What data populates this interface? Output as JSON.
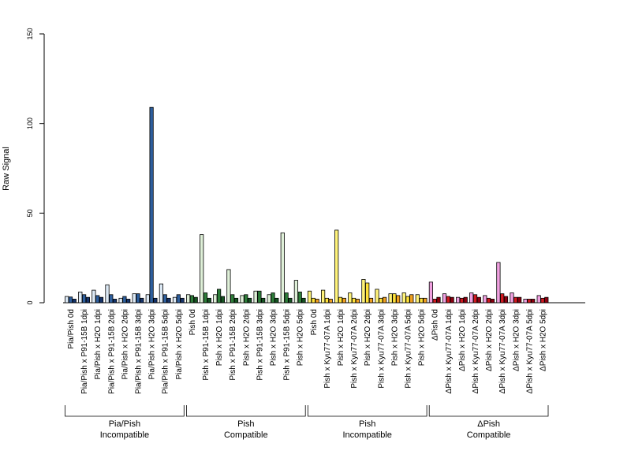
{
  "chart_data": {
    "type": "bar",
    "ylabel": "Raw Signal",
    "ylim": [
      0,
      150
    ],
    "yticks": [
      0,
      50,
      100,
      150
    ],
    "grid": false,
    "categories": [
      "Pia/Pish 0d",
      "Pia/Pish x P91-15B 1dpi",
      "Pia/Pish x H2O 1dpi",
      "Pia/Pish x P91-15B 2dpi",
      "Pia/Pish x H2O 2dpi",
      "Pia/Pish x P91-15B 3dpi",
      "Pia/Pish x H2O 3dpi",
      "Pia/Pish x P91-15B 5dpi",
      "Pia/Pish x H2O 5dpi",
      "Pish 0d",
      "Pish x P91-15B 1dpi",
      "Pish x H2O 1dpi",
      "Pish x P91-15B 2dpi",
      "Pish x H2O 2dpi",
      "Pish x P91-15B 3dpi",
      "Pish x H2O 3dpi",
      "Pish x P91-15B 5dpi",
      "Pish x H2O 5dpi",
      "Pish 0d",
      "Pish x Kyu77-07A 1dpi",
      "Pish x H2O 1dpi",
      "Pish x Kyu77-07A 2dpi",
      "Pish x H2O 2dpi",
      "Pish x Kyu77-07A 3dpi",
      "Pish x H2O 3dpi",
      "Pish x Kyu77-07A 5dpi",
      "Pish x H2O 5dpi",
      "ΔPish 0d",
      "ΔPish x Kyu77-07A 1dpi",
      "ΔPish x H2O 1dpi",
      "ΔPish x Kyu77-07A 2dpi",
      "ΔPish x H2O 2dpi",
      "ΔPish x Kyu77-07A 3dpi",
      "ΔPish x H2O 3dpi",
      "ΔPish x Kyu77-07A 5dpi",
      "ΔPish x H2O 5dpi"
    ],
    "values": [
      [
        3.5,
        3.2,
        2.0
      ],
      [
        6.0,
        4.5,
        3.0
      ],
      [
        7.0,
        4.0,
        3.0
      ],
      [
        10.0,
        4.5,
        2.0
      ],
      [
        2.5,
        3.5,
        2.0
      ],
      [
        5.0,
        5.0,
        2.5
      ],
      [
        4.5,
        109.0,
        2.5
      ],
      [
        10.5,
        4.5,
        2.5
      ],
      [
        3.0,
        4.5,
        2.5
      ],
      [
        4.5,
        4.0,
        3.0
      ],
      [
        38.0,
        5.5,
        2.5
      ],
      [
        4.5,
        7.5,
        3.5
      ],
      [
        18.5,
        4.5,
        2.5
      ],
      [
        4.0,
        4.5,
        2.5
      ],
      [
        6.5,
        6.5,
        2.5
      ],
      [
        4.5,
        5.5,
        2.5
      ],
      [
        39.0,
        5.5,
        2.5
      ],
      [
        12.5,
        6.0,
        2.5
      ],
      [
        6.5,
        2.5,
        2.0
      ],
      [
        7.0,
        2.5,
        2.0
      ],
      [
        40.5,
        3.0,
        2.5
      ],
      [
        5.5,
        2.5,
        2.0
      ],
      [
        13.0,
        11.0,
        2.5
      ],
      [
        7.5,
        2.5,
        3.0
      ],
      [
        5.0,
        5.0,
        4.0
      ],
      [
        5.5,
        3.5,
        4.5
      ],
      [
        4.5,
        2.5,
        2.5
      ],
      [
        11.5,
        2.0,
        3.0
      ],
      [
        5.0,
        3.5,
        3.0
      ],
      [
        3.0,
        2.5,
        3.0
      ],
      [
        5.5,
        4.5,
        3.0
      ],
      [
        4.0,
        2.5,
        2.0
      ],
      [
        22.5,
        5.0,
        3.5
      ],
      [
        5.5,
        3.0,
        3.0
      ],
      [
        2.0,
        2.0,
        2.0
      ],
      [
        4.0,
        2.5,
        3.0
      ]
    ],
    "group_colors": [
      [
        "#dce9f5",
        "#2e5f9e",
        "#16346b"
      ],
      [
        "#dff0d8",
        "#2e7d3a",
        "#165422"
      ],
      [
        "#fff37a",
        "#ffe13a",
        "#f0a020"
      ],
      [
        "#f0a0e0",
        "#d01a20",
        "#8c0010"
      ]
    ],
    "groups": [
      {
        "line1": "Pia/Pish",
        "line2": "Incompatible",
        "start": 0,
        "end": 8
      },
      {
        "line1": "Pish",
        "line2": "Compatible",
        "start": 9,
        "end": 17
      },
      {
        "line1": "Pish",
        "line2": "Incompatible",
        "start": 18,
        "end": 26
      },
      {
        "line1": "ΔPish",
        "line2": "Compatible",
        "start": 27,
        "end": 35
      }
    ]
  }
}
